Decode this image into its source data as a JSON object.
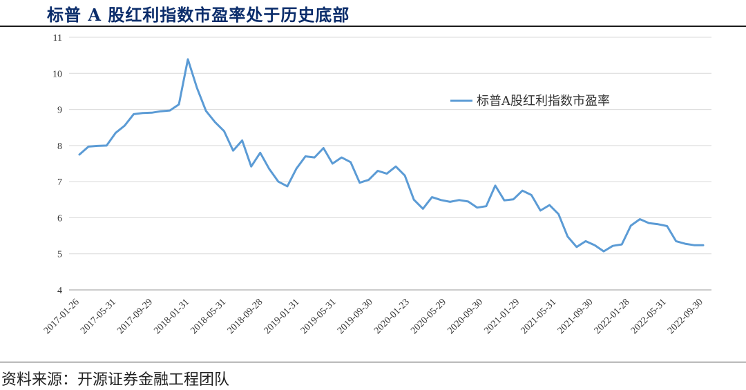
{
  "header": {
    "title": "标普 A 股红利指数市盈率处于历史底部"
  },
  "footer": {
    "source": "资料来源：开源证券金融工程团队"
  },
  "chart_data": {
    "type": "line",
    "ylim": [
      4,
      11
    ],
    "yticks": [
      4,
      5,
      6,
      7,
      8,
      9,
      10,
      11
    ],
    "grid": true,
    "legend_position": "top-right",
    "line_color": "#5b9bd5",
    "x_tick_labels": [
      "2017-01-26",
      "2017-05-31",
      "2017-09-29",
      "2018-01-31",
      "2018-05-31",
      "2018-09-28",
      "2019-01-31",
      "2019-05-31",
      "2019-09-30",
      "2020-01-23",
      "2020-05-29",
      "2020-09-30",
      "2021-01-29",
      "2021-05-31",
      "2021-09-30",
      "2022-01-28",
      "2022-05-31",
      "2022-09-30"
    ],
    "series": [
      {
        "name": "标普A股红利指数市盈率",
        "values": [
          7.75,
          7.97,
          7.99,
          8.0,
          8.35,
          8.55,
          8.87,
          8.9,
          8.91,
          8.95,
          8.97,
          9.14,
          10.39,
          9.6,
          8.96,
          8.65,
          8.4,
          7.86,
          8.14,
          7.42,
          7.8,
          7.35,
          7.0,
          6.87,
          7.36,
          7.7,
          7.67,
          7.93,
          7.5,
          7.67,
          7.54,
          6.97,
          7.05,
          7.3,
          7.22,
          7.42,
          7.17,
          6.5,
          6.25,
          6.57,
          6.49,
          6.44,
          6.49,
          6.45,
          6.28,
          6.32,
          6.89,
          6.48,
          6.51,
          6.75,
          6.63,
          6.2,
          6.35,
          6.1,
          5.48,
          5.19,
          5.35,
          5.24,
          5.07,
          5.22,
          5.26,
          5.78,
          5.96,
          5.85,
          5.82,
          5.77,
          5.35,
          5.28,
          5.24,
          5.24
        ]
      }
    ]
  }
}
